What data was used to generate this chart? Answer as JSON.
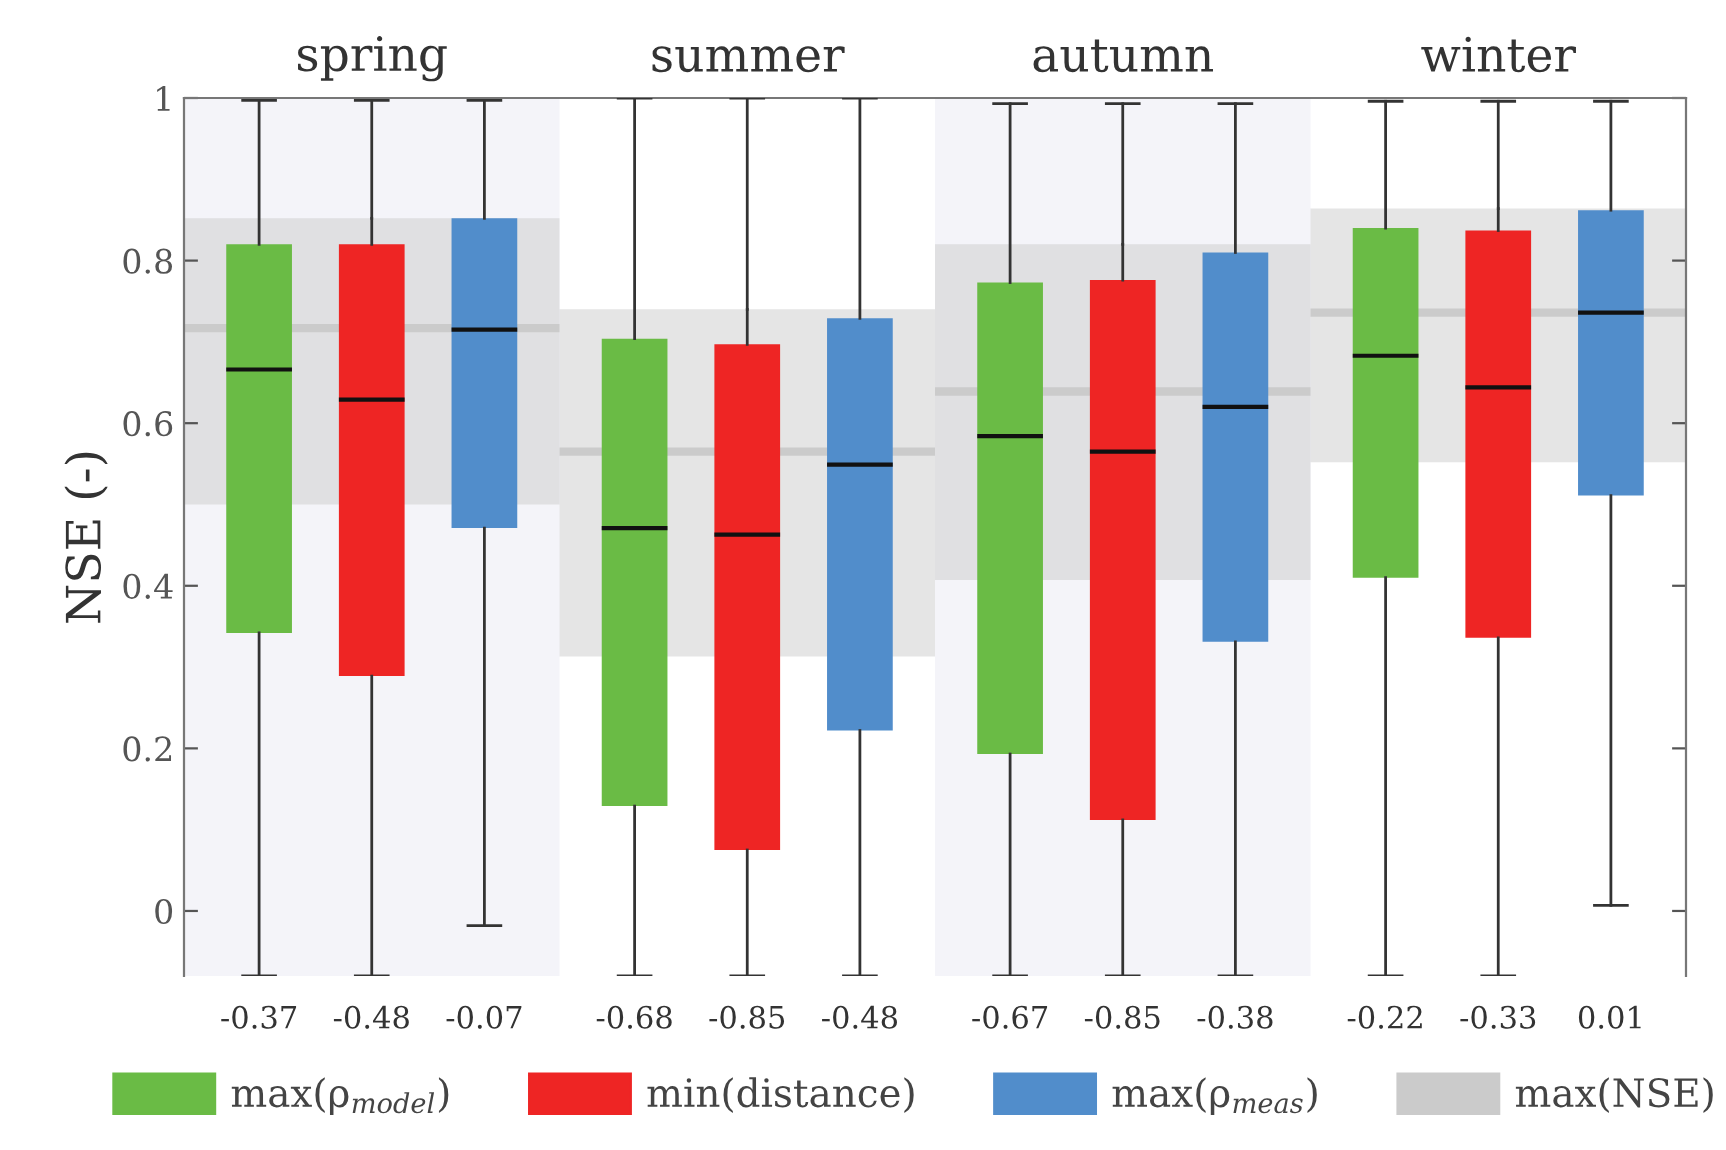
{
  "chart_data": {
    "type": "box",
    "ylabel": "NSE (-)",
    "categories": [
      "spring",
      "summer",
      "autumn",
      "winter"
    ],
    "ylim": [
      -0.08,
      1.0
    ],
    "yticks": [
      0,
      0.2,
      0.4,
      0.6,
      0.8,
      1
    ],
    "legend": "bottom",
    "grid": false,
    "bands": [
      {
        "axis": "x",
        "from": "spring",
        "to": "spring",
        "color": "#f4f4f9"
      },
      {
        "axis": "x",
        "from": "autumn",
        "to": "autumn",
        "color": "#f4f4f9"
      }
    ],
    "series": [
      {
        "name": "max(ρ$_{model}$)",
        "color": "#6abb45",
        "value_labels": [
          "-0.37",
          "-0.68",
          "-0.67",
          "-0.22"
        ],
        "boxes": [
          {
            "low": -0.08,
            "q1": 0.342,
            "median": 0.666,
            "q3": 0.82,
            "high": 0.997
          },
          {
            "low": -0.08,
            "q1": 0.129,
            "median": 0.471,
            "q3": 0.704,
            "high": 1.0
          },
          {
            "low": -0.08,
            "q1": 0.193,
            "median": 0.584,
            "q3": 0.773,
            "high": 0.993
          },
          {
            "low": -0.08,
            "q1": 0.41,
            "median": 0.683,
            "q3": 0.84,
            "high": 0.996
          }
        ]
      },
      {
        "name": "min(distance)",
        "color": "#ee2524",
        "value_labels": [
          "-0.48",
          "-0.85",
          "-0.85",
          "-0.33"
        ],
        "boxes": [
          {
            "low": -0.08,
            "q1": 0.289,
            "median": 0.629,
            "q3": 0.82,
            "high": 0.997
          },
          {
            "low": -0.08,
            "q1": 0.075,
            "median": 0.463,
            "q3": 0.697,
            "high": 1.0
          },
          {
            "low": -0.08,
            "q1": 0.112,
            "median": 0.565,
            "q3": 0.776,
            "high": 0.993
          },
          {
            "low": -0.08,
            "q1": 0.336,
            "median": 0.644,
            "q3": 0.837,
            "high": 0.996
          }
        ]
      },
      {
        "name": "max(ρ$_{meas}$)",
        "color": "#518dcb",
        "value_labels": [
          "-0.07",
          "-0.48",
          "-0.38",
          "0.01"
        ],
        "boxes": [
          {
            "low": -0.018,
            "q1": 0.471,
            "median": 0.715,
            "q3": 0.852,
            "high": 0.997
          },
          {
            "low": -0.08,
            "q1": 0.222,
            "median": 0.549,
            "q3": 0.729,
            "high": 1.0
          },
          {
            "low": -0.08,
            "q1": 0.331,
            "median": 0.62,
            "q3": 0.81,
            "high": 0.993
          },
          {
            "low": 0.007,
            "q1": 0.511,
            "median": 0.736,
            "q3": 0.862,
            "high": 0.996
          }
        ]
      },
      {
        "name": "max(NSE)",
        "color": "#cbcbcb",
        "boxes": [
          {
            "low": 0.5,
            "q1": 0.5,
            "median": 0.717,
            "q3": 0.852,
            "high": 0.852
          },
          {
            "low": 0.313,
            "q1": 0.313,
            "median": 0.565,
            "q3": 0.74,
            "high": 0.74
          },
          {
            "low": 0.407,
            "q1": 0.407,
            "median": 0.639,
            "q3": 0.82,
            "high": 0.82
          },
          {
            "low": 0.552,
            "q1": 0.552,
            "median": 0.736,
            "q3": 0.864,
            "high": 0.864
          }
        ]
      }
    ]
  }
}
